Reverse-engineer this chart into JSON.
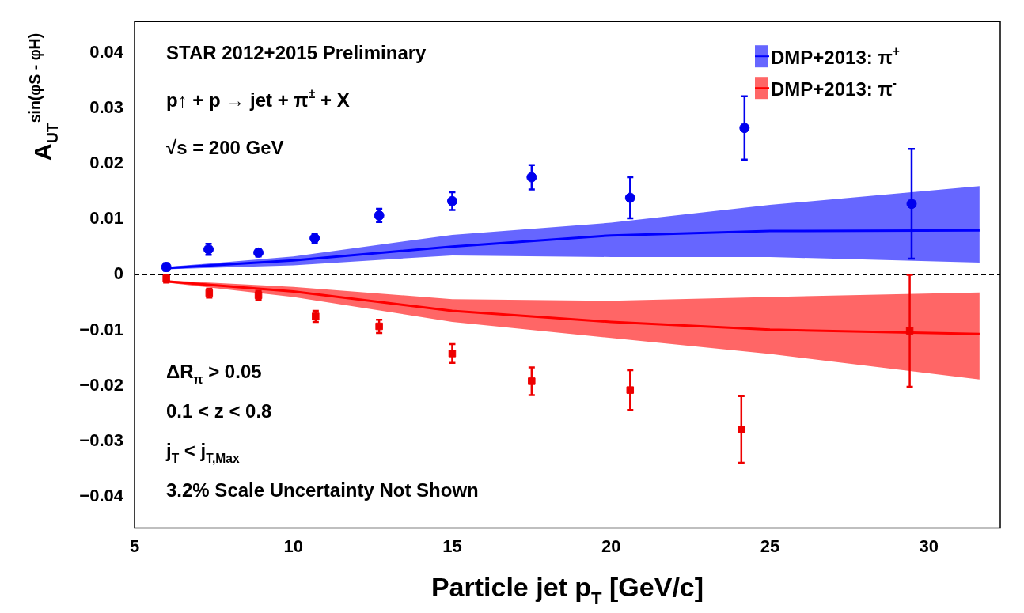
{
  "chart_data": {
    "type": "scatter",
    "title": "STAR 2012+2015 Preliminary",
    "xlabel": "Particle jet p$_{T}$ [GeV/c]",
    "ylabel": "A$_{UT}$$^{sin(φS - φH)}$",
    "annotations": [
      "p↑ + p → jet + π$^{±}$ + X",
      "√s = 200 GeV",
      "ΔR$_{π}$ > 0.05",
      "0.1 < z < 0.8",
      "j$_{T}$ < j$_{T,Max}$",
      "3.2% Scale Uncertainty Not Shown"
    ],
    "xlim": [
      5,
      32.25
    ],
    "xticks": [
      5,
      10,
      15,
      20,
      25,
      30
    ],
    "ylim": [
      -0.0457,
      0.0457
    ],
    "yticks": [
      {
        "value": -0.04,
        "label": "−0.04"
      },
      {
        "value": -0.03,
        "label": "−0.03"
      },
      {
        "value": -0.02,
        "label": "−0.02"
      },
      {
        "value": -0.01,
        "label": "−0.01"
      },
      0,
      0.01,
      0.02,
      0.03,
      0.04
    ],
    "grid": false,
    "legend": "top right",
    "ref_lines": [
      {
        "axis": "y",
        "value": 0,
        "color": "#000000",
        "line_style": "dashed"
      }
    ],
    "series": [
      {
        "type": "line",
        "name": "DMP+2013: π$^{+}$",
        "color": "#0000ff",
        "x": [
          6,
          10,
          15,
          20,
          25,
          31.6
        ],
        "values": [
          0.0012,
          0.0026,
          0.0051,
          0.0071,
          0.0079,
          0.008
        ],
        "lower": [
          0.001,
          0.0017,
          0.0035,
          0.0032,
          0.0032,
          0.0022
        ],
        "upper": [
          0.0014,
          0.0033,
          0.0072,
          0.0094,
          0.0126,
          0.016
        ]
      },
      {
        "type": "line",
        "name": "DMP+2013: π$^{-}$",
        "color": "#ff0000",
        "x": [
          6,
          10,
          15,
          20,
          25,
          31.6
        ],
        "values": [
          -0.0012,
          -0.003,
          -0.0065,
          -0.0085,
          -0.0099,
          -0.0107
        ],
        "lower": [
          -0.0014,
          -0.004,
          -0.0085,
          -0.0114,
          -0.0143,
          -0.0189
        ],
        "upper": [
          -0.001,
          -0.0022,
          -0.0044,
          -0.0047,
          -0.004,
          -0.0032
        ]
      },
      {
        "type": "scatter",
        "color": "#0000ee",
        "marker": "circle",
        "x": [
          6.0,
          7.33,
          8.9,
          10.67,
          12.7,
          15.0,
          17.5,
          20.6,
          24.2,
          29.46
        ],
        "values": [
          0.0014,
          0.0046,
          0.004,
          0.0066,
          0.0107,
          0.0133,
          0.0176,
          0.0139,
          0.0265,
          0.0128
        ],
        "errors": [
          0.0007,
          0.001,
          0.0007,
          0.0008,
          0.0012,
          0.0016,
          0.0022,
          0.0037,
          0.0057,
          0.0099
        ]
      },
      {
        "type": "scatter",
        "color": "#ee0000",
        "marker": "square",
        "x": [
          6.0,
          7.35,
          8.9,
          10.7,
          12.7,
          15.0,
          17.5,
          20.6,
          24.1,
          29.4
        ],
        "values": [
          -0.0007,
          -0.0033,
          -0.0037,
          -0.0075,
          -0.0093,
          -0.0142,
          -0.0192,
          -0.0208,
          -0.0279,
          -0.0101
        ],
        "errors": [
          0.0007,
          0.0008,
          0.0008,
          0.001,
          0.0012,
          0.0017,
          0.0025,
          0.0036,
          0.006,
          0.0101
        ]
      }
    ]
  }
}
